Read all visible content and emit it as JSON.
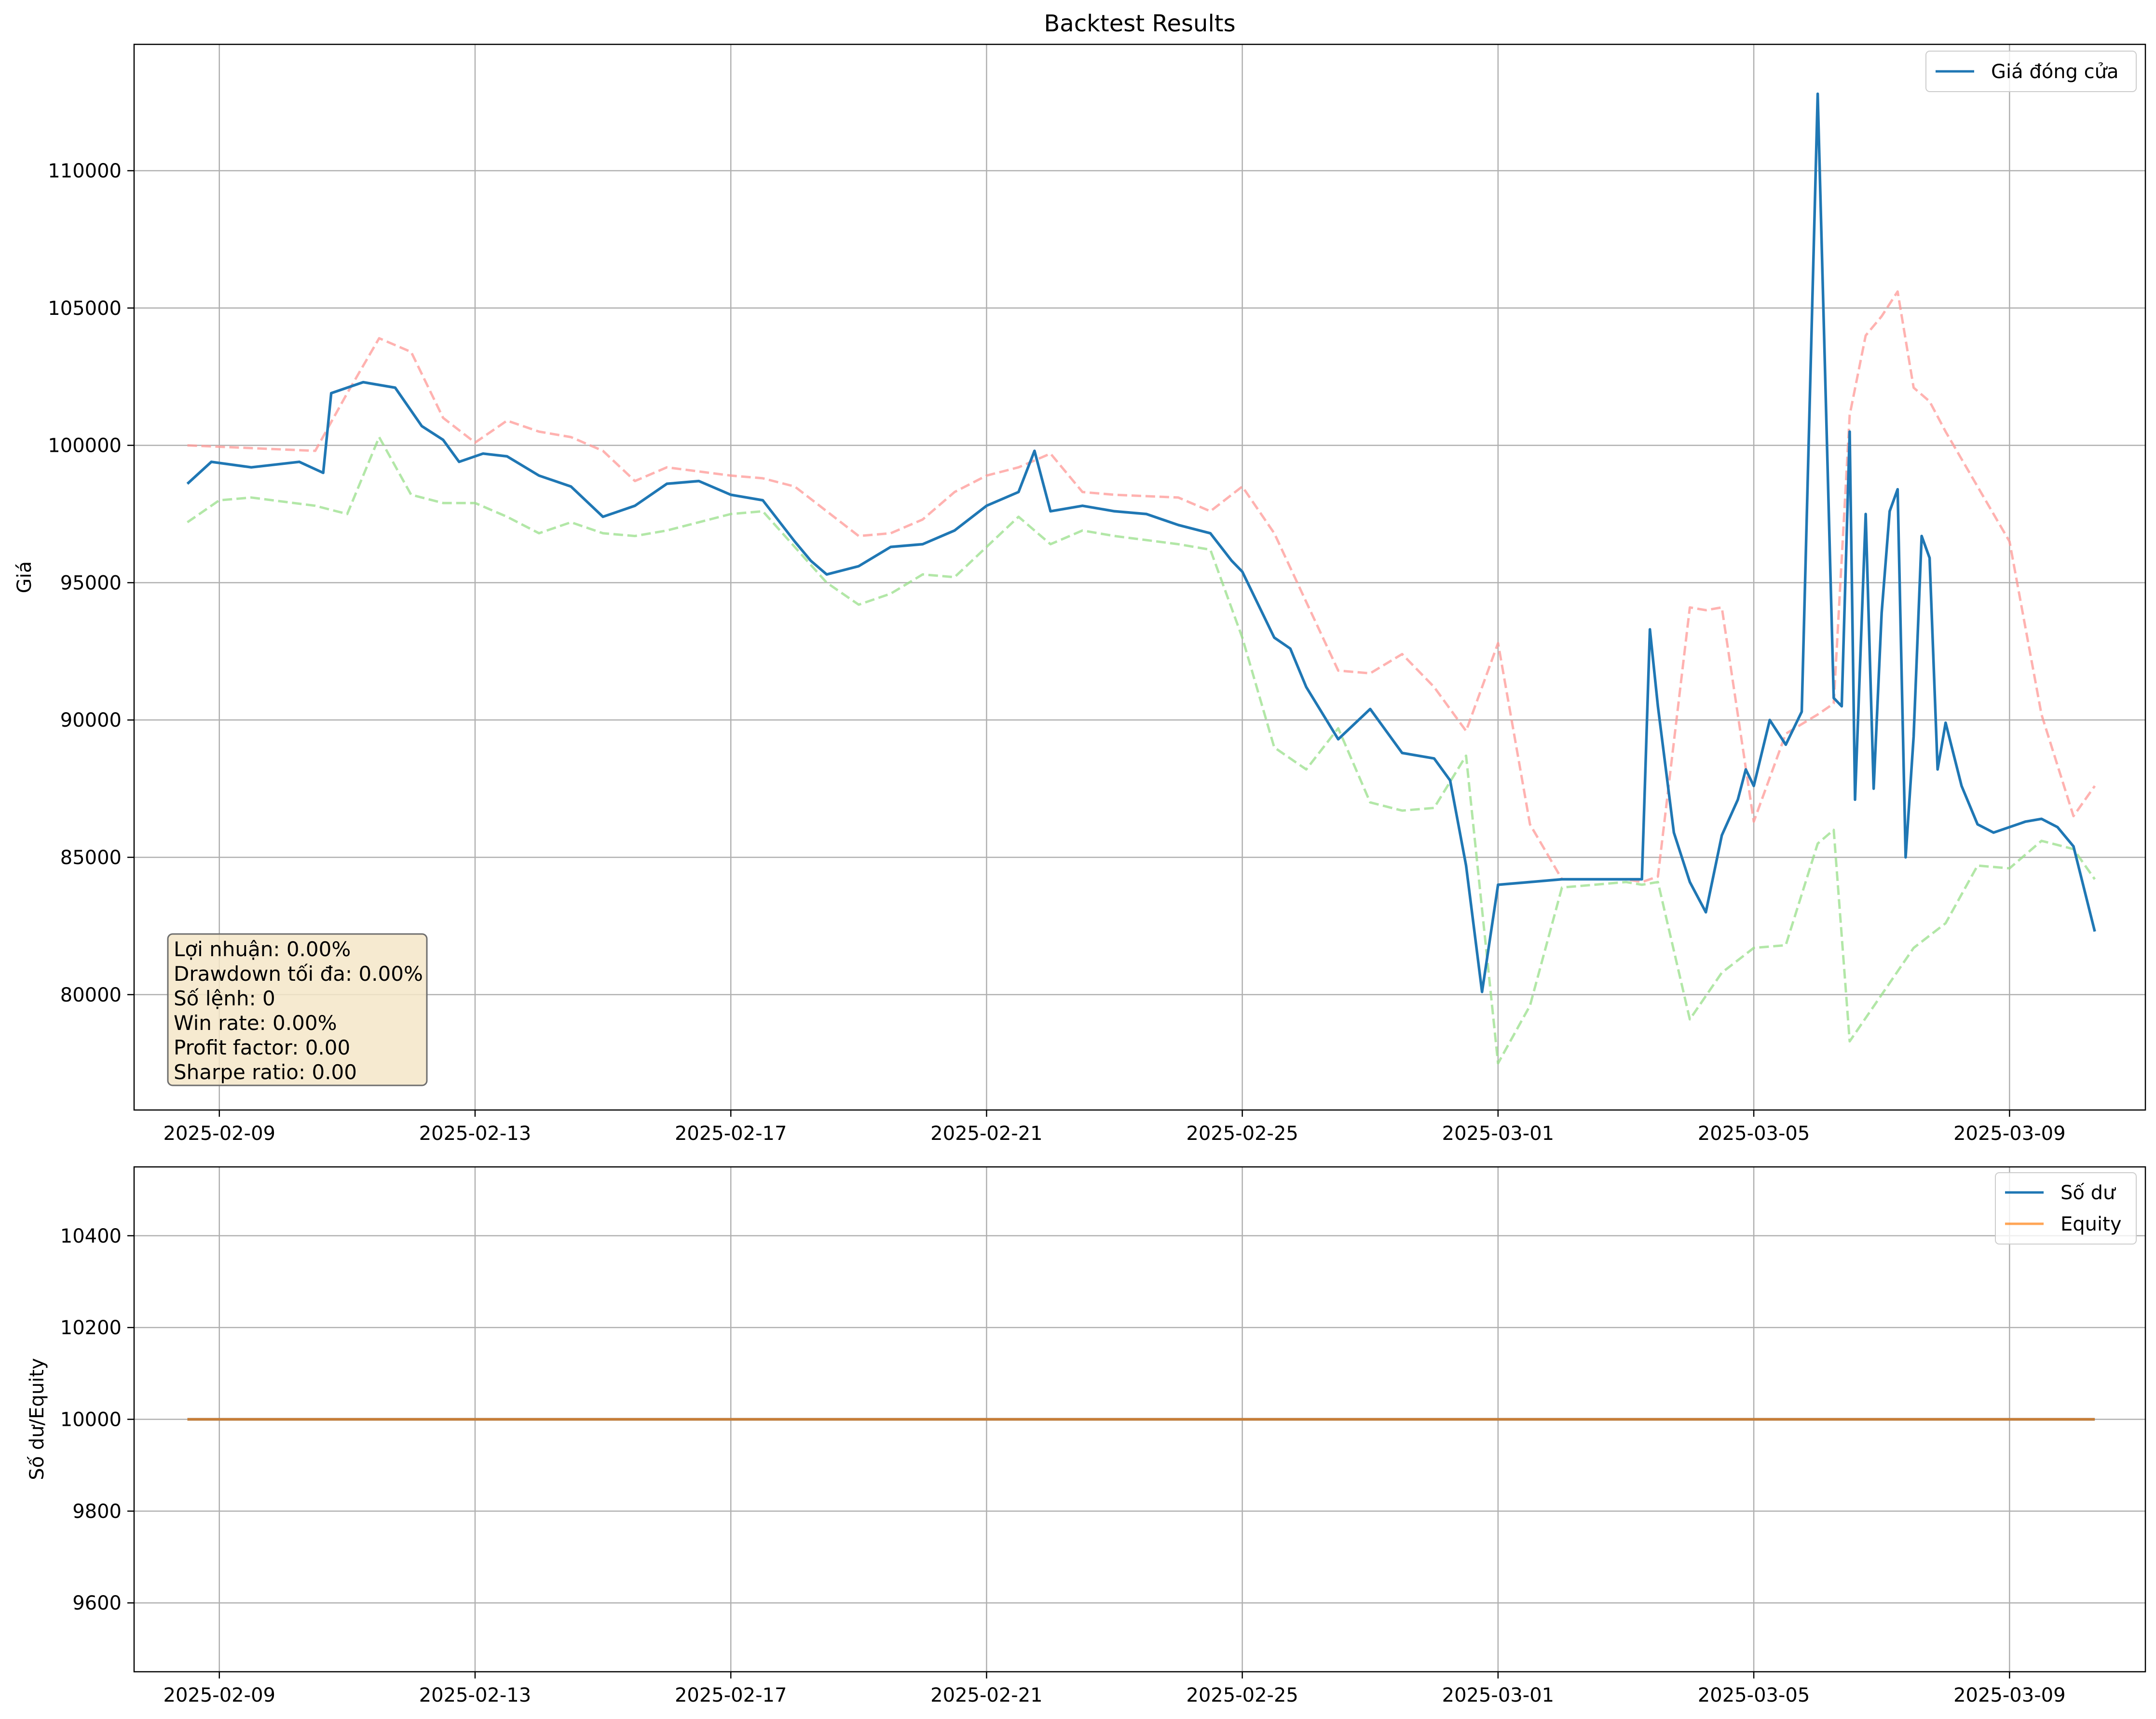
{
  "chart_data": [
    {
      "type": "line",
      "title": "Backtest Results",
      "xlabel": "",
      "ylabel": "Giá",
      "xlim": [
        "2025-02-07T16:00",
        "2025-03-11T03:00"
      ],
      "ylim": [
        75800,
        114600
      ],
      "x_ticks": [
        "2025-02-09",
        "2025-02-13",
        "2025-02-17",
        "2025-02-21",
        "2025-02-25",
        "2025-03-01",
        "2025-03-05",
        "2025-03-09"
      ],
      "y_ticks": [
        80000,
        85000,
        90000,
        95000,
        100000,
        105000,
        110000
      ],
      "grid": true,
      "legend": {
        "placement": "top-right"
      },
      "series": [
        {
          "name": "Giá đóng cửa",
          "color": "#1f77b4",
          "style": "solid",
          "x": [
            "2025-02-08T12:00",
            "2025-02-08T21:00",
            "2025-02-09T12:00",
            "2025-02-10T06:00",
            "2025-02-10T15:00",
            "2025-02-10T18:00",
            "2025-02-11T06:00",
            "2025-02-11T18:00",
            "2025-02-12T04:00",
            "2025-02-12T12:00",
            "2025-02-12T18:00",
            "2025-02-13T03:00",
            "2025-02-13T12:00",
            "2025-02-14T00:00",
            "2025-02-14T12:00",
            "2025-02-15T00:00",
            "2025-02-15T12:00",
            "2025-02-16T00:00",
            "2025-02-16T12:00",
            "2025-02-17T00:00",
            "2025-02-17T12:00",
            "2025-02-18T00:00",
            "2025-02-18T06:00",
            "2025-02-18T12:00",
            "2025-02-19T00:00",
            "2025-02-19T12:00",
            "2025-02-20T00:00",
            "2025-02-20T12:00",
            "2025-02-21T00:00",
            "2025-02-21T12:00",
            "2025-02-21T18:00",
            "2025-02-22T00:00",
            "2025-02-22T12:00",
            "2025-02-23T00:00",
            "2025-02-23T12:00",
            "2025-02-24T00:00",
            "2025-02-24T12:00",
            "2025-02-24T20:00",
            "2025-02-25T00:00",
            "2025-02-25T12:00",
            "2025-02-25T18:00",
            "2025-02-26T00:00",
            "2025-02-26T12:00",
            "2025-02-27T00:00",
            "2025-02-27T12:00",
            "2025-02-28T00:00",
            "2025-02-28T06:00",
            "2025-02-28T12:00",
            "2025-02-28T18:00",
            "2025-03-01T00:00",
            "2025-03-01T12:00",
            "2025-03-02T00:00",
            "2025-03-02T12:00",
            "2025-03-03T00:00",
            "2025-03-03T06:00",
            "2025-03-03T09:00",
            "2025-03-03T12:00",
            "2025-03-03T18:00",
            "2025-03-04T00:00",
            "2025-03-04T06:00",
            "2025-03-04T12:00",
            "2025-03-04T18:00",
            "2025-03-04T21:00",
            "2025-03-05T00:00",
            "2025-03-05T06:00",
            "2025-03-05T12:00",
            "2025-03-05T18:00",
            "2025-03-06T00:00",
            "2025-03-06T06:00",
            "2025-03-06T09:00",
            "2025-03-06T12:00",
            "2025-03-06T14:00",
            "2025-03-06T18:00",
            "2025-03-06T21:00",
            "2025-03-07T00:00",
            "2025-03-07T03:00",
            "2025-03-07T06:00",
            "2025-03-07T09:00",
            "2025-03-07T12:00",
            "2025-03-07T15:00",
            "2025-03-07T18:00",
            "2025-03-07T21:00",
            "2025-03-08T00:00",
            "2025-03-08T06:00",
            "2025-03-08T12:00",
            "2025-03-08T18:00",
            "2025-03-09T00:00",
            "2025-03-09T06:00",
            "2025-03-09T12:00",
            "2025-03-09T18:00",
            "2025-03-10T00:00",
            "2025-03-10T08:00"
          ],
          "y": [
            98600,
            99400,
            99200,
            99400,
            99000,
            101900,
            102300,
            102100,
            100700,
            100200,
            99400,
            99700,
            99600,
            98900,
            98500,
            97400,
            97800,
            98600,
            98700,
            98200,
            98000,
            96500,
            95800,
            95300,
            95600,
            96300,
            96400,
            96900,
            97800,
            98300,
            99800,
            97600,
            97800,
            97600,
            97500,
            97100,
            96800,
            95800,
            95400,
            93000,
            92600,
            91200,
            89300,
            90400,
            88800,
            88600,
            87800,
            84700,
            80100,
            84000,
            84100,
            84200,
            84200,
            84200,
            84200,
            93300,
            90500,
            85900,
            84100,
            83000,
            85800,
            87100,
            88200,
            87600,
            90000,
            89100,
            90300,
            112800,
            90800,
            90500,
            100500,
            87100,
            97500,
            87500,
            93900,
            97600,
            98400,
            85000,
            89400,
            96700,
            95900,
            88200,
            89900,
            87600,
            86200,
            85900,
            86100,
            86300,
            86400,
            86100,
            85400,
            82300
          ]
        },
        {
          "name": "",
          "color": "#ff9896",
          "style": "dashed",
          "x": [
            "2025-02-08T12:00",
            "2025-02-09T12:00",
            "2025-02-10T12:00",
            "2025-02-11T00:00",
            "2025-02-11T12:00",
            "2025-02-12T00:00",
            "2025-02-12T12:00",
            "2025-02-13T00:00",
            "2025-02-13T12:00",
            "2025-02-14T00:00",
            "2025-02-14T12:00",
            "2025-02-15T00:00",
            "2025-02-15T12:00",
            "2025-02-16T00:00",
            "2025-02-17T00:00",
            "2025-02-17T12:00",
            "2025-02-18T00:00",
            "2025-02-18T12:00",
            "2025-02-19T00:00",
            "2025-02-19T12:00",
            "2025-02-20T00:00",
            "2025-02-20T12:00",
            "2025-02-21T00:00",
            "2025-02-21T12:00",
            "2025-02-22T00:00",
            "2025-02-22T12:00",
            "2025-02-23T00:00",
            "2025-02-24T00:00",
            "2025-02-24T12:00",
            "2025-02-25T00:00",
            "2025-02-25T12:00",
            "2025-02-26T00:00",
            "2025-02-26T12:00",
            "2025-02-27T00:00",
            "2025-02-27T12:00",
            "2025-02-28T00:00",
            "2025-02-28T12:00",
            "2025-03-01T00:00",
            "2025-03-01T12:00",
            "2025-03-02T00:00",
            "2025-03-02T12:00",
            "2025-03-03T00:00",
            "2025-03-03T06:00",
            "2025-03-03T12:00",
            "2025-03-04T00:00",
            "2025-03-04T06:00",
            "2025-03-04T12:00",
            "2025-03-05T00:00",
            "2025-03-05T12:00",
            "2025-03-06T00:00",
            "2025-03-06T06:00",
            "2025-03-06T12:00",
            "2025-03-06T18:00",
            "2025-03-07T00:00",
            "2025-03-07T06:00",
            "2025-03-07T12:00",
            "2025-03-07T18:00",
            "2025-03-08T00:00",
            "2025-03-08T12:00",
            "2025-03-09T00:00",
            "2025-03-09T12:00",
            "2025-03-10T00:00",
            "2025-03-10T08:00"
          ],
          "y": [
            100000,
            99900,
            99800,
            101900,
            103900,
            103400,
            101000,
            100100,
            100900,
            100500,
            100300,
            99800,
            98700,
            99200,
            98900,
            98800,
            98500,
            97600,
            96700,
            96800,
            97300,
            98300,
            98900,
            99200,
            99700,
            98300,
            98200,
            98100,
            97600,
            98500,
            96800,
            94300,
            91800,
            91700,
            92400,
            91200,
            89600,
            92800,
            86200,
            84200,
            84200,
            84200,
            84100,
            84300,
            94100,
            94000,
            94100,
            86300,
            89500,
            90200,
            90600,
            101100,
            104000,
            104700,
            105600,
            102100,
            101600,
            100500,
            98500,
            96500,
            90200,
            86500,
            87600
          ]
        },
        {
          "name": "",
          "color": "#98df8a",
          "style": "dashed",
          "x": [
            "2025-02-08T12:00",
            "2025-02-09T00:00",
            "2025-02-09T12:00",
            "2025-02-10T12:00",
            "2025-02-11T00:00",
            "2025-02-11T12:00",
            "2025-02-12T00:00",
            "2025-02-12T12:00",
            "2025-02-13T00:00",
            "2025-02-13T12:00",
            "2025-02-14T00:00",
            "2025-02-14T12:00",
            "2025-02-15T00:00",
            "2025-02-15T12:00",
            "2025-02-16T00:00",
            "2025-02-17T00:00",
            "2025-02-17T12:00",
            "2025-02-18T00:00",
            "2025-02-18T12:00",
            "2025-02-19T00:00",
            "2025-02-19T12:00",
            "2025-02-20T00:00",
            "2025-02-20T12:00",
            "2025-02-21T00:00",
            "2025-02-21T12:00",
            "2025-02-22T00:00",
            "2025-02-22T12:00",
            "2025-02-23T00:00",
            "2025-02-24T00:00",
            "2025-02-24T12:00",
            "2025-02-25T00:00",
            "2025-02-25T12:00",
            "2025-02-26T00:00",
            "2025-02-26T12:00",
            "2025-02-27T00:00",
            "2025-02-27T12:00",
            "2025-02-28T00:00",
            "2025-02-28T12:00",
            "2025-03-01T00:00",
            "2025-03-01T12:00",
            "2025-03-02T00:00",
            "2025-03-03T00:00",
            "2025-03-03T06:00",
            "2025-03-03T12:00",
            "2025-03-04T00:00",
            "2025-03-04T12:00",
            "2025-03-05T00:00",
            "2025-03-05T12:00",
            "2025-03-06T00:00",
            "2025-03-06T06:00",
            "2025-03-06T12:00",
            "2025-03-07T00:00",
            "2025-03-07T12:00",
            "2025-03-08T00:00",
            "2025-03-08T12:00",
            "2025-03-09T00:00",
            "2025-03-09T12:00",
            "2025-03-10T00:00",
            "2025-03-10T08:00"
          ],
          "y": [
            97200,
            98000,
            98100,
            97800,
            97500,
            100300,
            98200,
            97900,
            97900,
            97400,
            96800,
            97200,
            96800,
            96700,
            96900,
            97500,
            97600,
            96300,
            95000,
            94200,
            94600,
            95300,
            95200,
            96300,
            97400,
            96400,
            96900,
            96700,
            96400,
            96200,
            93000,
            89000,
            88200,
            89700,
            87000,
            86700,
            86800,
            88700,
            77500,
            79600,
            83900,
            84100,
            84000,
            84100,
            79100,
            80800,
            81700,
            81800,
            85500,
            86000,
            78300,
            80000,
            81700,
            82600,
            84700,
            84600,
            85600,
            85300,
            84200
          ]
        }
      ]
    },
    {
      "type": "line",
      "title": "",
      "xlabel": "",
      "ylabel": "Số dư/Equity",
      "xlim": [
        "2025-02-07T16:00",
        "2025-03-11T03:00"
      ],
      "ylim": [
        9450,
        10550
      ],
      "x_ticks": [
        "2025-02-09",
        "2025-02-13",
        "2025-02-17",
        "2025-02-21",
        "2025-02-25",
        "2025-03-01",
        "2025-03-05",
        "2025-03-09"
      ],
      "y_ticks": [
        9600,
        9800,
        10000,
        10200,
        10400
      ],
      "grid": true,
      "legend": {
        "placement": "top-right"
      },
      "series": [
        {
          "name": "Số dư",
          "color": "#1f77b4",
          "style": "solid",
          "x": [
            "2025-02-08T12:00",
            "2025-03-10T08:00"
          ],
          "y": [
            10000,
            10000
          ]
        },
        {
          "name": "Equity",
          "color": "#ff7f0e",
          "style": "solid",
          "x": [
            "2025-02-08T12:00",
            "2025-03-10T08:00"
          ],
          "y": [
            10000,
            10000
          ]
        }
      ]
    }
  ],
  "stats_box": {
    "lines": [
      "Lợi nhuận: 0.00%",
      "Drawdown tối đa: 0.00%",
      "Số lệnh: 0",
      "Win rate: 0.00%",
      "Profit factor: 0.00",
      "Sharpe ratio: 0.00"
    ],
    "background": "#f5e6c8"
  }
}
